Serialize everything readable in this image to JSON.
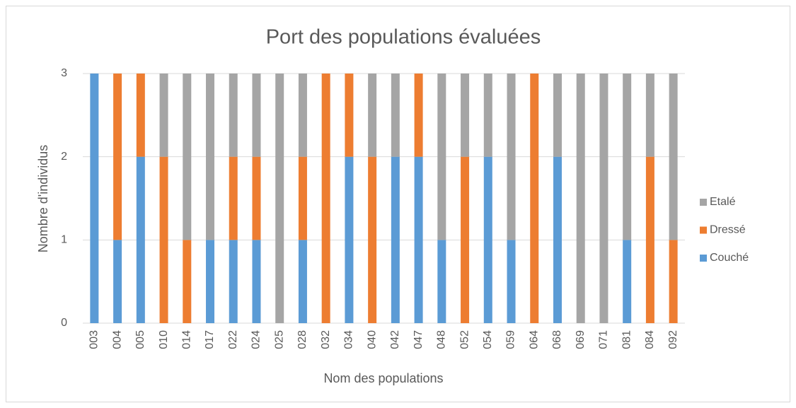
{
  "chart_data": {
    "type": "stacked_bar",
    "title": "Port des populations évaluées",
    "x_label": "Nom des populations",
    "y_label": "Nombre d'individus",
    "categories": [
      "003",
      "004",
      "005",
      "010",
      "014",
      "017",
      "022",
      "024",
      "025",
      "028",
      "032",
      "034",
      "040",
      "042",
      "047",
      "048",
      "052",
      "054",
      "059",
      "064",
      "068",
      "069",
      "071",
      "081",
      "084",
      "092"
    ],
    "series": [
      {
        "name": "Couché",
        "color": "#5b9bd5",
        "values": [
          3,
          1,
          2,
          0,
          0,
          1,
          1,
          1,
          0,
          1,
          0,
          2,
          0,
          2,
          2,
          1,
          0,
          2,
          1,
          0,
          2,
          0,
          0,
          1,
          0,
          0
        ]
      },
      {
        "name": "Dressé",
        "color": "#ed7d31",
        "values": [
          0,
          2,
          1,
          2,
          1,
          0,
          1,
          1,
          0,
          1,
          3,
          1,
          2,
          0,
          1,
          0,
          2,
          0,
          0,
          3,
          0,
          0,
          0,
          0,
          2,
          1
        ]
      },
      {
        "name": "Etalé",
        "color": "#a5a5a5",
        "values": [
          0,
          0,
          0,
          1,
          2,
          2,
          1,
          1,
          3,
          1,
          0,
          0,
          1,
          1,
          0,
          2,
          1,
          1,
          2,
          0,
          1,
          3,
          3,
          2,
          1,
          2
        ]
      }
    ],
    "ylim": [
      0,
      3
    ],
    "yticks": [
      0,
      1,
      2,
      3
    ],
    "grid": true,
    "legend": "right"
  }
}
